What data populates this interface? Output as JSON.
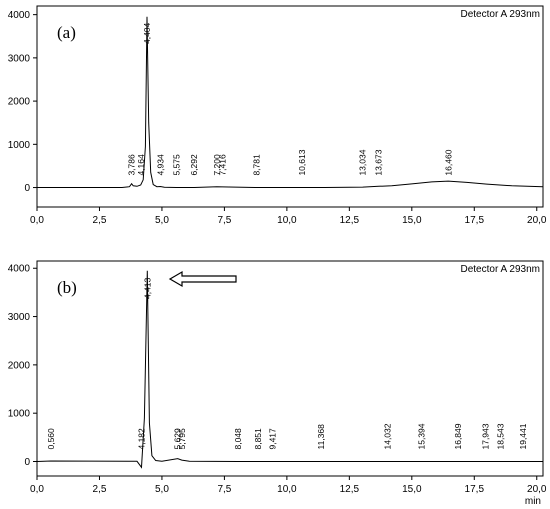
{
  "chart_data": [
    {
      "type": "line",
      "panel_label": "(a)",
      "detector": "Detector A 293nm",
      "x_unit": "",
      "xlim": [
        0,
        20.25
      ],
      "ylim": [
        -450,
        4200
      ],
      "x_ticks": [
        "0,0",
        "2,5",
        "5,0",
        "7,5",
        "10,0",
        "12,5",
        "15,0",
        "17,5",
        "20,0"
      ],
      "y_ticks": [
        "0",
        "1000",
        "2000",
        "3000",
        "4000"
      ],
      "series": [
        {
          "x": [
            0,
            3.4,
            3.7,
            3.786,
            3.85,
            4.0,
            4.15,
            4.25,
            4.34,
            4.404,
            4.47,
            4.55,
            4.65,
            4.8,
            4.934,
            5.1,
            5.575,
            6.292,
            7.2,
            7.416,
            8.781,
            10.613,
            11.5,
            13.034,
            13.673,
            14.2,
            15.0,
            15.8,
            16.46,
            17.2,
            18.0,
            19.0,
            20.25
          ],
          "y": [
            0,
            0,
            20,
            90,
            40,
            30,
            60,
            180,
            950,
            3950,
            1500,
            350,
            70,
            20,
            25,
            5,
            0,
            0,
            20,
            15,
            0,
            0,
            0,
            10,
            30,
            40,
            85,
            130,
            150,
            120,
            80,
            40,
            20
          ]
        }
      ],
      "peaks": [
        {
          "label": "3,786",
          "x": 3.786
        },
        {
          "label": "4,164",
          "x": 4.164
        },
        {
          "label": "4,404",
          "x": 4.404
        },
        {
          "label": "4,934",
          "x": 4.934
        },
        {
          "label": "5,575",
          "x": 5.575
        },
        {
          "label": "6,292",
          "x": 6.292
        },
        {
          "label": "7,200",
          "x": 7.2
        },
        {
          "label": "7,416",
          "x": 7.416
        },
        {
          "label": "8,781",
          "x": 8.781
        },
        {
          "label": "10,613",
          "x": 10.613
        },
        {
          "label": "13,034",
          "x": 13.034
        },
        {
          "label": "13,673",
          "x": 13.673
        },
        {
          "label": "16,460",
          "x": 16.46
        }
      ]
    },
    {
      "type": "line",
      "panel_label": "(b)",
      "detector": "Detector A 293nm",
      "x_unit": "min",
      "xlim": [
        0,
        20.25
      ],
      "ylim": [
        -300,
        4150
      ],
      "x_ticks": [
        "0,0",
        "2,5",
        "5,0",
        "7,5",
        "10,0",
        "12,5",
        "15,0",
        "17,5",
        "20,0"
      ],
      "y_ticks": [
        "0",
        "1000",
        "2000",
        "3000",
        "4000"
      ],
      "series": [
        {
          "x": [
            0,
            0.56,
            4.0,
            4.182,
            4.3,
            4.413,
            4.5,
            4.6,
            4.75,
            5.0,
            5.629,
            5.795,
            6.1,
            8.048,
            8.851,
            9.417,
            11.368,
            14.032,
            15.394,
            16.849,
            17.943,
            18.543,
            19.441,
            20.25
          ],
          "y": [
            0,
            10,
            5,
            -120,
            900,
            3950,
            800,
            120,
            20,
            5,
            60,
            30,
            5,
            0,
            0,
            0,
            0,
            0,
            0,
            0,
            0,
            0,
            0,
            0
          ]
        }
      ],
      "peaks": [
        {
          "label": "0,560",
          "x": 0.56
        },
        {
          "label": "4,182",
          "x": 4.182
        },
        {
          "label": "4,413",
          "x": 4.413
        },
        {
          "label": "5,629",
          "x": 5.629
        },
        {
          "label": "5,795",
          "x": 5.795
        },
        {
          "label": "8,048",
          "x": 8.048
        },
        {
          "label": "8,851",
          "x": 8.851
        },
        {
          "label": "9,417",
          "x": 9.417
        },
        {
          "label": "11,368",
          "x": 11.368
        },
        {
          "label": "14,032",
          "x": 14.032
        },
        {
          "label": "15,394",
          "x": 15.394
        },
        {
          "label": "16,849",
          "x": 16.849
        },
        {
          "label": "17,943",
          "x": 17.943
        },
        {
          "label": "18,543",
          "x": 18.543
        },
        {
          "label": "19,441",
          "x": 19.441
        }
      ]
    }
  ]
}
